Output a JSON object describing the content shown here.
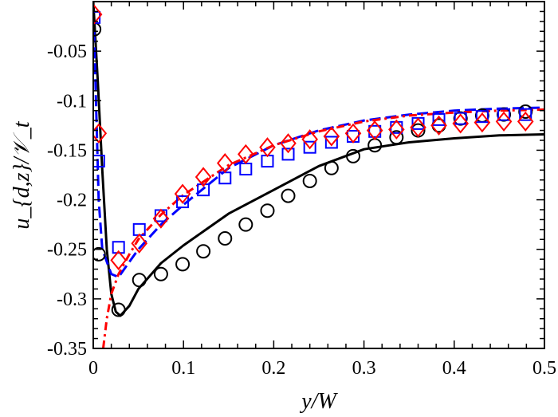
{
  "chart_data": {
    "type": "scatter",
    "xlabel": "y/W",
    "ylabel": "u_{d,z}/𝒱_t",
    "xlim": [
      0,
      0.5
    ],
    "ylim": [
      -0.35,
      0
    ],
    "xticks": [
      0,
      0.1,
      0.2,
      0.3,
      0.4,
      0.5
    ],
    "xtick_labels": [
      "0",
      "0.1",
      "0.2",
      "0.3",
      "0.4",
      "0.5"
    ],
    "yticks": [
      -0.35,
      -0.3,
      -0.25,
      -0.2,
      -0.15,
      -0.1,
      -0.05
    ],
    "ytick_labels": [
      "-0.35",
      "-0.3",
      "-0.25",
      "-0.2",
      "-0.15",
      "-0.1",
      "-0.05"
    ],
    "grid": false,
    "lines": [
      {
        "style": "solid",
        "color": "#000000",
        "x": [
          0,
          0.005,
          0.01,
          0.015,
          0.02,
          0.025,
          0.03,
          0.04,
          0.05,
          0.075,
          0.1,
          0.15,
          0.2,
          0.25,
          0.3,
          0.35,
          0.4,
          0.45,
          0.5
        ],
        "y": [
          0,
          -0.08,
          -0.17,
          -0.25,
          -0.295,
          -0.313,
          -0.317,
          -0.307,
          -0.29,
          -0.264,
          -0.246,
          -0.214,
          -0.19,
          -0.166,
          -0.149,
          -0.142,
          -0.138,
          -0.135,
          -0.134
        ]
      },
      {
        "style": "dashed",
        "color": "#0000ff",
        "x": [
          0.001,
          0.003,
          0.006,
          0.01,
          0.02,
          0.028,
          0.05,
          0.075,
          0.1,
          0.15,
          0.2,
          0.25,
          0.3,
          0.35,
          0.4,
          0.45,
          0.5
        ],
        "y": [
          -0.03,
          -0.1,
          -0.2,
          -0.25,
          -0.275,
          -0.278,
          -0.25,
          -0.225,
          -0.205,
          -0.168,
          -0.145,
          -0.13,
          -0.12,
          -0.114,
          -0.11,
          -0.108,
          -0.107
        ]
      },
      {
        "style": "dashdot",
        "color": "#ff0000",
        "x": [
          0.011,
          0.015,
          0.02,
          0.028,
          0.04,
          0.05,
          0.075,
          0.1,
          0.15,
          0.2,
          0.25,
          0.3,
          0.35,
          0.4,
          0.45,
          0.5
        ],
        "y": [
          -0.35,
          -0.32,
          -0.295,
          -0.275,
          -0.255,
          -0.24,
          -0.215,
          -0.195,
          -0.165,
          -0.145,
          -0.131,
          -0.121,
          -0.115,
          -0.112,
          -0.11,
          -0.109
        ]
      }
    ],
    "markers": [
      {
        "marker": "circle",
        "color": "#000000",
        "x": [
          0.001,
          0.006,
          0.028,
          0.051,
          0.075,
          0.099,
          0.122,
          0.146,
          0.169,
          0.193,
          0.216,
          0.24,
          0.264,
          0.288,
          0.312,
          0.336,
          0.36,
          0.383,
          0.407,
          0.431,
          0.455,
          0.479
        ],
        "y": [
          -0.028,
          -0.255,
          -0.311,
          -0.281,
          -0.275,
          -0.265,
          -0.252,
          -0.239,
          -0.225,
          -0.211,
          -0.196,
          -0.181,
          -0.168,
          -0.156,
          -0.145,
          -0.137,
          -0.13,
          -0.125,
          -0.118,
          -0.115,
          -0.114,
          -0.111
        ]
      },
      {
        "marker": "square",
        "color": "#0000ff",
        "x": [
          0.001,
          0.006,
          0.028,
          0.051,
          0.075,
          0.099,
          0.122,
          0.146,
          0.169,
          0.193,
          0.216,
          0.24,
          0.264,
          0.288,
          0.312,
          0.336,
          0.36,
          0.383,
          0.407,
          0.431,
          0.455,
          0.479
        ],
        "y": [
          -0.016,
          -0.161,
          -0.248,
          -0.23,
          -0.216,
          -0.202,
          -0.19,
          -0.178,
          -0.169,
          -0.161,
          -0.154,
          -0.147,
          -0.142,
          -0.136,
          -0.131,
          -0.127,
          -0.123,
          -0.119,
          -0.118,
          -0.116,
          -0.114,
          -0.114
        ]
      },
      {
        "marker": "diamond",
        "color": "#ff0000",
        "x": [
          0.001,
          0.006,
          0.028,
          0.051,
          0.075,
          0.099,
          0.122,
          0.146,
          0.169,
          0.193,
          0.216,
          0.24,
          0.264,
          0.288,
          0.312,
          0.336,
          0.36,
          0.383,
          0.407,
          0.431,
          0.455,
          0.479
        ],
        "y": [
          -0.013,
          -0.133,
          -0.261,
          -0.244,
          -0.219,
          -0.194,
          -0.177,
          -0.163,
          -0.154,
          -0.147,
          -0.143,
          -0.139,
          -0.136,
          -0.133,
          -0.13,
          -0.129,
          -0.127,
          -0.125,
          -0.123,
          -0.122,
          -0.121,
          -0.121
        ]
      }
    ]
  }
}
